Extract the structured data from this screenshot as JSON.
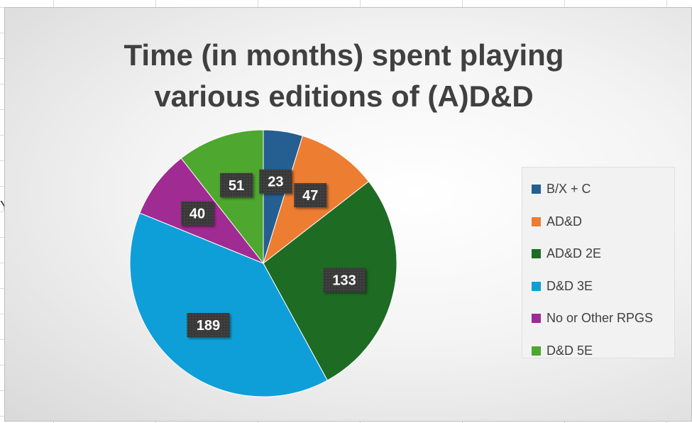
{
  "stray_cell_text": "Y",
  "chart_data": {
    "type": "pie",
    "title_lines": [
      "Time (in months) spent playing",
      "various editions of (A)D&D"
    ],
    "title": "Time (in months) spent playing various editions of (A)D&D",
    "categories": [
      "B/X + C",
      "AD&D",
      "AD&D 2E",
      "D&D 3E",
      "No or Other RPGS",
      "D&D 5E"
    ],
    "values": [
      23,
      47,
      133,
      189,
      40,
      51
    ],
    "colors": [
      "#255e91",
      "#ed7d31",
      "#1e6b24",
      "#0f9fd8",
      "#a02b93",
      "#4ea72e"
    ],
    "data_labels": [
      "23",
      "47",
      "133",
      "189",
      "40",
      "51"
    ],
    "legend_position": "right",
    "start_angle": "top, clockwise"
  }
}
